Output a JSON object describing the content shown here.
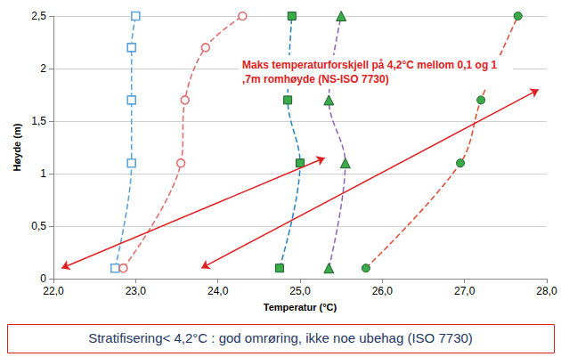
{
  "chart_data": {
    "type": "line",
    "x_label": "Temperatur (°C)",
    "y_label": "Høyde (m)",
    "annotation": "Maks temperaturforskjell på 4,2°C mellom 0,1 og 1,7m romhøyde (NS-ISO 7730)",
    "note": "Stratifisering< 4,2°C : god omrøring, ikke noe ubehag (ISO 7730)",
    "xlim": [
      22,
      28
    ],
    "xticks": [
      {
        "value": 22,
        "label": "22,0"
      },
      {
        "value": 23,
        "label": "23,0"
      },
      {
        "value": 24,
        "label": "24,0"
      },
      {
        "value": 25,
        "label": "25,0"
      },
      {
        "value": 26,
        "label": "26,0"
      },
      {
        "value": 27,
        "label": "27,0"
      },
      {
        "value": 28,
        "label": "28,0"
      }
    ],
    "ylim": [
      0,
      2.5
    ],
    "yticks": [
      0,
      {
        "value": 0.5,
        "label": "0,5"
      },
      1,
      {
        "value": 1.5,
        "label": "1,5"
      },
      2,
      {
        "value": 2.5,
        "label": "2,5"
      }
    ],
    "grid": true,
    "series": [
      {
        "color": "#5da5da",
        "marker": "open_square",
        "line_style": "dashed",
        "x": [
          22.75,
          22.95,
          22.95,
          22.95,
          23.0
        ],
        "values": [
          0.1,
          1.1,
          1.7,
          2.2,
          2.5
        ]
      },
      {
        "color": "#e07070",
        "marker": "open_circle",
        "line_style": "dashed",
        "x": [
          22.85,
          23.55,
          23.6,
          23.85,
          24.3
        ],
        "values": [
          0.1,
          1.1,
          1.7,
          2.2,
          2.5
        ]
      },
      {
        "color": "#2e86c1",
        "marker": "filled_square",
        "line_style": "dashed",
        "x": [
          24.75,
          25.0,
          24.85,
          24.9
        ],
        "values": [
          0.1,
          1.1,
          1.7,
          2.5
        ]
      },
      {
        "color": "#8e6bbf",
        "marker": "filled_triangle",
        "line_style": "dashed",
        "x": [
          25.35,
          25.55,
          25.35,
          25.5
        ],
        "values": [
          0.1,
          1.1,
          1.7,
          2.5
        ]
      },
      {
        "color": "#e0533a",
        "marker": "filled_circle",
        "line_style": "dashed",
        "x": [
          25.8,
          26.95,
          27.2,
          27.65
        ],
        "values": [
          0.1,
          1.1,
          1.7,
          2.5
        ]
      }
    ],
    "arrows": [
      {
        "from": [
          22.1,
          0.1
        ],
        "to": [
          25.3,
          1.15
        ]
      },
      {
        "from": [
          23.8,
          0.1
        ],
        "to": [
          27.9,
          1.8
        ]
      }
    ]
  }
}
